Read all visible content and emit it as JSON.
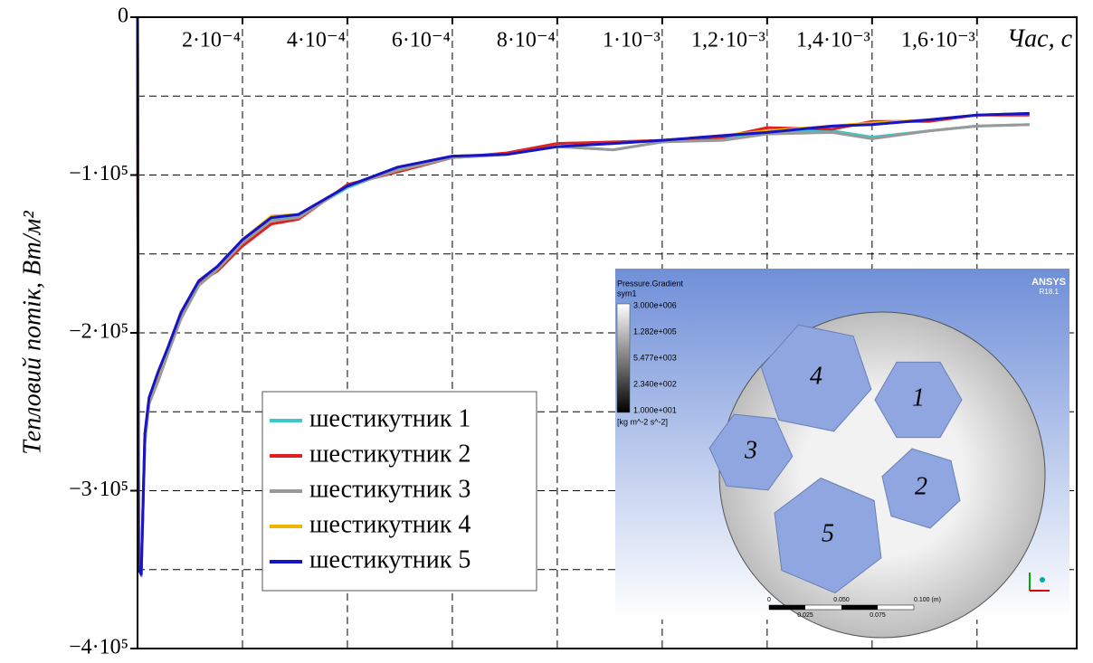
{
  "chart_data": {
    "type": "line",
    "x_label": "Час, с",
    "y_label": "Тепловий потік, Вт/м²",
    "x": [
      0,
      2e-06,
      7e-06,
      1.4e-05,
      2.2e-05,
      4e-05,
      5.7e-05,
      8.3e-05,
      0.000117,
      0.000152,
      0.0002,
      0.000255,
      0.000307,
      0.0004,
      0.000496,
      0.0006,
      0.000703,
      0.0008,
      0.000907,
      0.001,
      0.001116,
      0.0012,
      0.001324,
      0.0014,
      0.00151,
      0.0016,
      0.0017
    ],
    "series": [
      {
        "name": "шестикутник 1",
        "color": "#3cc8c8",
        "values": [
          0,
          -345000,
          -352000,
          -268000,
          -243000,
          -227000,
          -212000,
          -189000,
          -168000,
          -159000,
          -142000,
          -128000,
          -126000,
          -108000,
          -96000,
          -89000,
          -87000,
          -82000,
          -84000,
          -79000,
          -77000,
          -73000,
          -72000,
          -76000,
          -72000,
          -69000,
          -68000
        ]
      },
      {
        "name": "шестикутник 2",
        "color": "#e02020",
        "values": [
          0,
          -348000,
          -351000,
          -265000,
          -242000,
          -226000,
          -212000,
          -190000,
          -168000,
          -161000,
          -145000,
          -131000,
          -128000,
          -106000,
          -98000,
          -89000,
          -86000,
          -80000,
          -79000,
          -78000,
          -76000,
          -70000,
          -71000,
          -66000,
          -66000,
          -62000,
          -62000
        ]
      },
      {
        "name": "шестикутник 3",
        "color": "#999999",
        "values": [
          0,
          -340000,
          -354000,
          -270000,
          -245000,
          -230000,
          -214000,
          -191000,
          -170000,
          -160000,
          -143000,
          -129000,
          -127000,
          -107000,
          -97000,
          -89000,
          -87000,
          -82000,
          -84000,
          -79000,
          -78000,
          -74000,
          -73000,
          -77000,
          -72000,
          -69000,
          -68000
        ]
      },
      {
        "name": "шестикутник 4",
        "color": "#f0b400",
        "values": [
          0,
          -350000,
          -352000,
          -264000,
          -241000,
          -225000,
          -210000,
          -187000,
          -167000,
          -158000,
          -141000,
          -126000,
          -125000,
          -107000,
          -95000,
          -88000,
          -87000,
          -82000,
          -80000,
          -78000,
          -75000,
          -72000,
          -69000,
          -67000,
          -65000,
          -62000,
          -61000
        ]
      },
      {
        "name": "шестикутник 5",
        "color": "#1414c8",
        "values": [
          0,
          -350000,
          -353000,
          -264000,
          -241000,
          -224000,
          -210000,
          -187000,
          -167000,
          -158000,
          -141000,
          -127000,
          -125000,
          -107000,
          -95000,
          -88000,
          -87000,
          -82000,
          -80000,
          -78000,
          -75000,
          -73000,
          -69000,
          -68000,
          -65000,
          -62000,
          -61000
        ]
      }
    ],
    "xlim": [
      0,
      0.00179
    ],
    "ylim": [
      -400000,
      0
    ],
    "xticks": [
      {
        "value": 0.0002,
        "label": "2·10⁻⁴"
      },
      {
        "value": 0.0004,
        "label": "4·10⁻⁴"
      },
      {
        "value": 0.0006,
        "label": "6·10⁻⁴"
      },
      {
        "value": 0.0008,
        "label": "8·10⁻⁴"
      },
      {
        "value": 0.001,
        "label": "1·10⁻³"
      },
      {
        "value": 0.0012,
        "label": "1,2·10⁻³"
      },
      {
        "value": 0.0014,
        "label": "1,4·10⁻³"
      },
      {
        "value": 0.0016,
        "label": "1,6·10⁻³"
      }
    ],
    "yticks": [
      0,
      {
        "value": -100000,
        "label": "−1·10⁵"
      },
      {
        "value": -200000,
        "label": "−2·10⁵"
      },
      {
        "value": -300000,
        "label": "−3·10⁵"
      },
      {
        "value": -400000,
        "label": "−4·10⁵"
      }
    ],
    "minor_yticks": [
      -50000,
      -150000,
      -250000,
      -350000
    ],
    "grid": true,
    "legend": "lower-left",
    "inset": {
      "title": "Pressure.Gradient",
      "subtitle": "sym1",
      "colorbar_labels": [
        "3.000e+006",
        "1.282e+005",
        "5.477e+003",
        "2.340e+002",
        "1.000e+001"
      ],
      "unit": "[kg m^-2 s^-2]",
      "brand": "ANSYS",
      "version": "R18.1",
      "scale_top": [
        "0",
        "0.050",
        "0.100 (m)"
      ],
      "scale_bottom": [
        "0.025",
        "0.075"
      ],
      "labels": [
        "1",
        "2",
        "3",
        "4",
        "5"
      ]
    }
  }
}
